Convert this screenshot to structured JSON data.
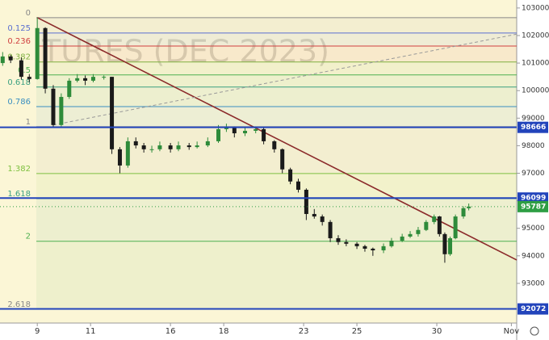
{
  "chart_data": {
    "type": "candlestick",
    "watermark": "TURES (DEC 2023)",
    "x": [
      -1.3,
      -1.0,
      -0.6,
      -0.3,
      0.0,
      0.3,
      0.6,
      0.9,
      1.2,
      1.5,
      1.8,
      2.1,
      2.5,
      2.8,
      3.1,
      3.4,
      3.7,
      4.0,
      4.3,
      4.6,
      5.0,
      5.3,
      5.7,
      6.0,
      6.4,
      6.8,
      7.1,
      7.4,
      7.8,
      8.2,
      8.5,
      8.9,
      9.2,
      9.5,
      9.8,
      10.1,
      10.4,
      10.7,
      11.0,
      11.3,
      11.6,
      12.0,
      12.3,
      12.6,
      13.0,
      13.3,
      13.7,
      14.0,
      14.3,
      14.6,
      14.9,
      15.1,
      15.3,
      15.5,
      15.7,
      16.0,
      16.2
    ],
    "ohlc": [
      [
        101000,
        101400,
        100900,
        101240
      ],
      [
        101240,
        101300,
        101000,
        101100
      ],
      [
        101100,
        101200,
        100400,
        100500
      ],
      [
        100500,
        100600,
        100300,
        100420
      ],
      [
        100420,
        102650,
        100400,
        102270
      ],
      [
        102270,
        102300,
        99900,
        100070
      ],
      [
        100070,
        100200,
        98650,
        98750
      ],
      [
        98750,
        99900,
        98700,
        99770
      ],
      [
        99770,
        100450,
        99700,
        100360
      ],
      [
        100360,
        100600,
        100300,
        100450
      ],
      [
        100450,
        100550,
        100200,
        100360
      ],
      [
        100360,
        100600,
        100300,
        100500
      ],
      [
        100500,
        100550,
        100400,
        100500
      ],
      [
        100500,
        100500,
        97700,
        97870
      ],
      [
        97870,
        97950,
        97000,
        97280
      ],
      [
        97280,
        98300,
        97200,
        98160
      ],
      [
        98160,
        98300,
        97900,
        98010
      ],
      [
        98010,
        98100,
        97750,
        97870
      ],
      [
        97870,
        98000,
        97750,
        97870
      ],
      [
        97870,
        98150,
        97800,
        98010
      ],
      [
        98010,
        98100,
        97750,
        97870
      ],
      [
        97870,
        98150,
        97800,
        98010
      ],
      [
        98010,
        98100,
        97850,
        97950
      ],
      [
        97950,
        98150,
        97900,
        98010
      ],
      [
        98010,
        98300,
        97950,
        98160
      ],
      [
        98160,
        98750,
        98100,
        98600
      ],
      [
        98600,
        98800,
        98500,
        98690
      ],
      [
        98690,
        98700,
        98300,
        98450
      ],
      [
        98450,
        98650,
        98350,
        98540
      ],
      [
        98540,
        98700,
        98450,
        98600
      ],
      [
        98600,
        98650,
        98050,
        98160
      ],
      [
        98160,
        98200,
        97750,
        97870
      ],
      [
        97870,
        97900,
        97000,
        97140
      ],
      [
        97140,
        97200,
        96600,
        96700
      ],
      [
        96700,
        96800,
        96300,
        96400
      ],
      [
        96400,
        96450,
        95300,
        95520
      ],
      [
        95520,
        95700,
        95350,
        95430
      ],
      [
        95430,
        95500,
        95100,
        95230
      ],
      [
        95230,
        95300,
        94500,
        94640
      ],
      [
        94640,
        94750,
        94400,
        94500
      ],
      [
        94500,
        94600,
        94350,
        94440
      ],
      [
        94440,
        94500,
        94250,
        94350
      ],
      [
        94350,
        94400,
        94150,
        94260
      ],
      [
        94260,
        94300,
        94000,
        94200
      ],
      [
        94200,
        94450,
        94100,
        94350
      ],
      [
        94350,
        94650,
        94300,
        94550
      ],
      [
        94550,
        94800,
        94500,
        94700
      ],
      [
        94700,
        94900,
        94650,
        94790
      ],
      [
        94790,
        95050,
        94700,
        94940
      ],
      [
        94940,
        95300,
        94900,
        95230
      ],
      [
        95230,
        95500,
        95150,
        95430
      ],
      [
        95430,
        95450,
        94700,
        94790
      ],
      [
        94790,
        94850,
        93750,
        94060
      ],
      [
        94060,
        94700,
        94000,
        94640
      ],
      [
        94640,
        95500,
        94600,
        95430
      ],
      [
        95430,
        95800,
        95350,
        95730
      ],
      [
        95730,
        95900,
        95650,
        95790
      ]
    ],
    "up_color": "#2e8b3a",
    "down_color": "#1a1a1a",
    "xlim": [
      -1.4,
      18
    ],
    "ylim": [
      91560,
      103290
    ],
    "xticks": [
      {
        "value": 0,
        "label": "9"
      },
      {
        "value": 2,
        "label": "11"
      },
      {
        "value": 5,
        "label": "16"
      },
      {
        "value": 7,
        "label": "18"
      },
      {
        "value": 10,
        "label": "23"
      },
      {
        "value": 12,
        "label": "25"
      },
      {
        "value": 15,
        "label": "30"
      },
      {
        "value": 17.8,
        "label": "Nov"
      }
    ],
    "yticks": [
      93000,
      94000,
      95000,
      96000,
      97000,
      98000,
      99000,
      100000,
      101000,
      102000,
      103000
    ],
    "fib_levels": [
      {
        "label": "0",
        "price": 102650,
        "color": "#888888"
      },
      {
        "label": "0.125",
        "price": 102090,
        "color": "#5a6fd0"
      },
      {
        "label": "0.236",
        "price": 101620,
        "color": "#d04040"
      },
      {
        "label": "0.382",
        "price": 101040,
        "color": "#7fb040"
      },
      {
        "label": "0.5",
        "price": 100570,
        "color": "#4caf50"
      },
      {
        "label": "0.618",
        "price": 100130,
        "color": "#3aa080"
      },
      {
        "label": "0.786",
        "price": 99420,
        "color": "#3a8fc0"
      },
      {
        "label": "1",
        "price": 98690,
        "color": "#888888"
      },
      {
        "label": "1.382",
        "price": 96990,
        "color": "#7fc040"
      },
      {
        "label": "1.618",
        "price": 96080,
        "color": "#3aa080"
      },
      {
        "label": "2",
        "price": 94530,
        "color": "#4caf50"
      },
      {
        "label": "2.618",
        "price": 92060,
        "color": "#888888"
      }
    ],
    "price_lines": [
      {
        "value": 98666,
        "color": "#2244bb"
      },
      {
        "value": 96099,
        "color": "#2244bb"
      },
      {
        "value": 92072,
        "color": "#2244bb"
      }
    ],
    "last_price": {
      "value": 95787,
      "color": "#2e9e44"
    },
    "trendlines": [
      {
        "x": [
          0,
          18
        ],
        "y": [
          102650,
          93850
        ],
        "color": "#8b2a2a",
        "dashed": false
      },
      {
        "x": [
          0.6,
          18
        ],
        "y": [
          98750,
          102050
        ],
        "color": "#999999",
        "dashed": true
      }
    ]
  }
}
